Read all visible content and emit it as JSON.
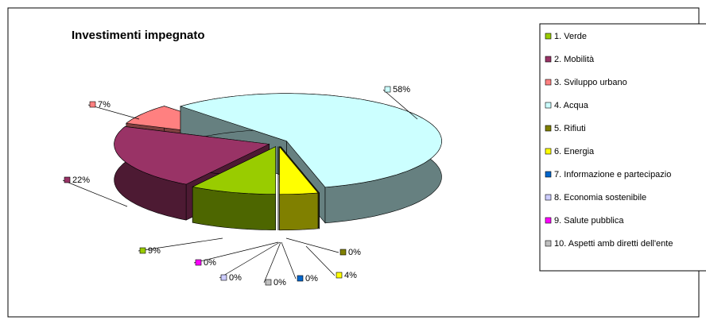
{
  "chart_data": {
    "type": "pie3d",
    "title": "Investimenti impegnato",
    "categories": [
      "1. Verde",
      "2. Mobilità",
      "3. Sviluppo urbano",
      "4. Acqua",
      "5. Rifiuti",
      "6. Energia",
      "7. Informazione e partecipazio",
      "8. Economia sostenibile",
      "9. Salute pubblica",
      "10. Aspetti amb diretti dell'ente"
    ],
    "values": [
      9,
      22,
      7,
      58,
      0,
      4,
      0,
      0,
      0,
      0
    ],
    "value_labels": [
      "9%",
      "22%",
      "7%",
      "58%",
      "0%",
      "4%",
      "0%",
      "0%",
      "0%",
      "0%"
    ],
    "colors": [
      "#99cc00",
      "#993366",
      "#ff8080",
      "#ccffff",
      "#808000",
      "#ffff00",
      "#0066cc",
      "#ccccff",
      "#ff00ff",
      "#c0c0c0"
    ],
    "legend": "right"
  }
}
